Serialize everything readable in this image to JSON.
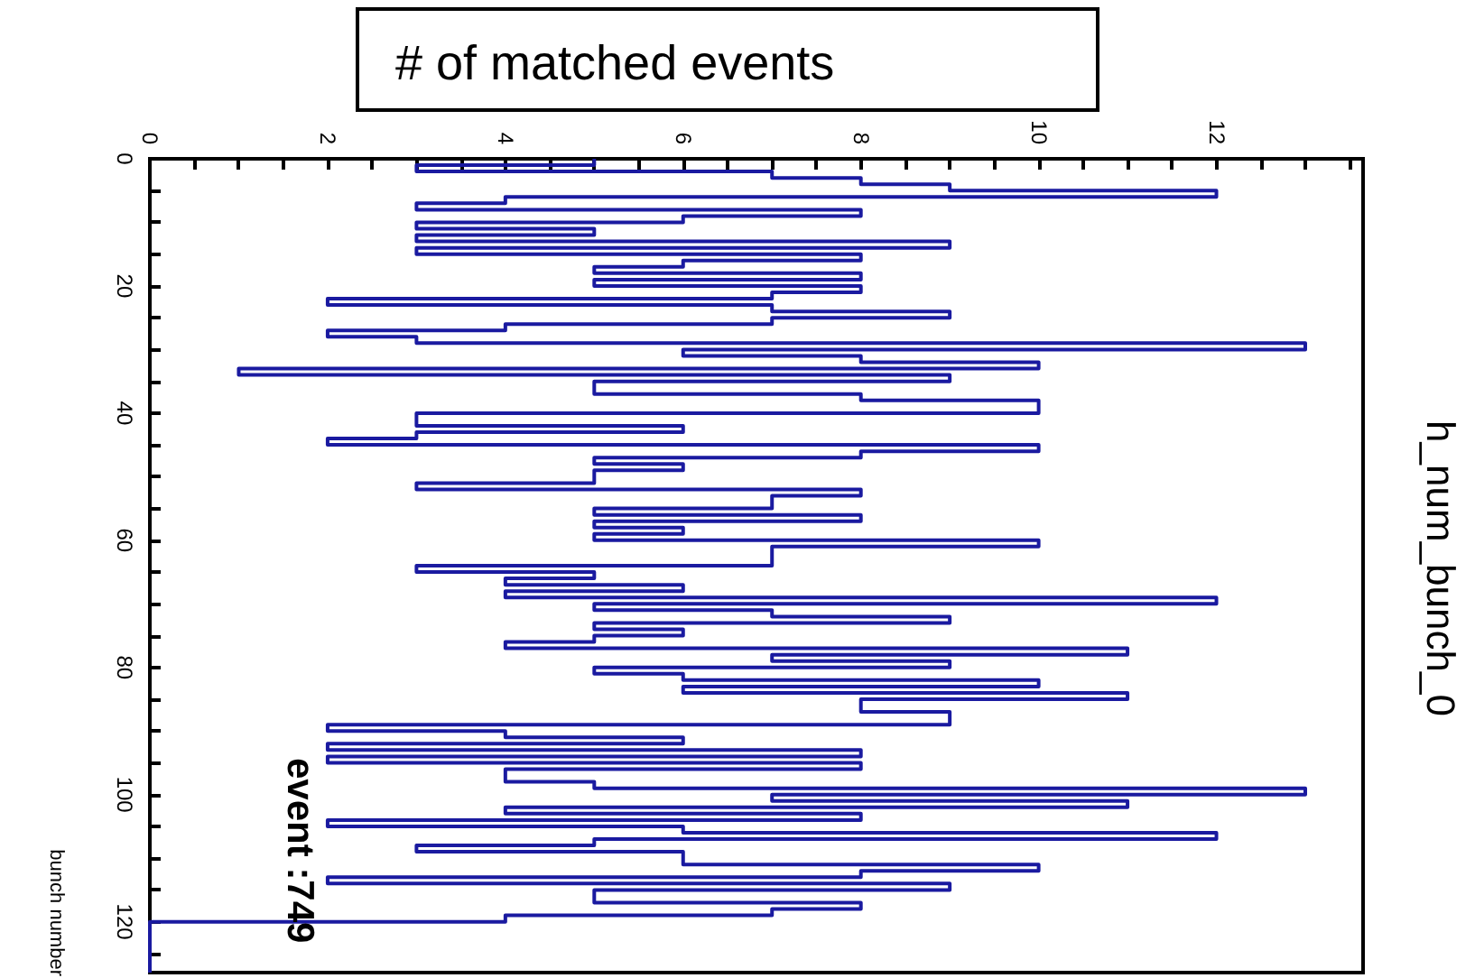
{
  "chart_data": {
    "type": "histogram",
    "orientation": "horizontal",
    "title": "h_num_bunch_0",
    "xlabel": "# of matched events",
    "ylabel": "bunch number",
    "annotations": [
      "event :749"
    ],
    "bins": [
      0,
      1,
      2,
      3,
      4,
      5,
      6,
      7,
      8,
      9,
      10,
      11,
      12,
      13,
      14,
      15,
      16,
      17,
      18,
      19,
      20,
      21,
      22,
      23,
      24,
      25,
      26,
      27,
      28,
      29,
      30,
      31,
      32,
      33,
      34,
      35,
      36,
      37,
      38,
      39,
      40,
      41,
      42,
      43,
      44,
      45,
      46,
      47,
      48,
      49,
      50,
      51,
      52,
      53,
      54,
      55,
      56,
      57,
      58,
      59,
      60,
      61,
      62,
      63,
      64,
      65,
      66,
      67,
      68,
      69,
      70,
      71,
      72,
      73,
      74,
      75,
      76,
      77,
      78,
      79,
      80,
      81,
      82,
      83,
      84,
      85,
      86,
      87,
      88,
      89,
      90,
      91,
      92,
      93,
      94,
      95,
      96,
      97,
      98,
      99,
      100,
      101,
      102,
      103,
      104,
      105,
      106,
      107,
      108,
      109,
      110,
      111,
      112,
      113,
      114,
      115,
      116,
      117,
      118,
      119,
      120,
      121,
      122,
      123,
      124,
      125,
      126,
      127,
      128
    ],
    "values": [
      5,
      3,
      7,
      8,
      9,
      12,
      4,
      3,
      8,
      6,
      3,
      5,
      3,
      9,
      3,
      8,
      6,
      5,
      8,
      5,
      8,
      7,
      2,
      7,
      9,
      7,
      4,
      2,
      3,
      13,
      6,
      8,
      10,
      1,
      9,
      5,
      5,
      8,
      10,
      10,
      3,
      3,
      6,
      3,
      2,
      10,
      8,
      5,
      6,
      5,
      5,
      3,
      8,
      7,
      7,
      5,
      8,
      5,
      6,
      5,
      10,
      7,
      7,
      7,
      3,
      5,
      4,
      6,
      4,
      12,
      5,
      7,
      9,
      5,
      6,
      5,
      4,
      11,
      7,
      9,
      5,
      6,
      10,
      6,
      11,
      8,
      8,
      9,
      9,
      2,
      4,
      6,
      2,
      8,
      2,
      8,
      4,
      4,
      5,
      13,
      7,
      11,
      4,
      8,
      2,
      6,
      12,
      5,
      3,
      6,
      6,
      10,
      8,
      2,
      9,
      5,
      5,
      8,
      7,
      4,
      0,
      0,
      0,
      0,
      0,
      0,
      0,
      0
    ],
    "color": "#1a1aa0",
    "xlim": [
      0,
      13.65
    ],
    "ylim": [
      128,
      0
    ],
    "yticks": [
      0,
      {
        "value": 5,
        "label": null
      },
      {
        "value": 10,
        "label": null
      },
      {
        "value": 15,
        "label": null
      },
      20,
      {
        "value": 25,
        "label": null
      },
      {
        "value": 30,
        "label": null
      },
      {
        "value": 35,
        "label": null
      },
      40,
      {
        "value": 45,
        "label": null
      },
      {
        "value": 50,
        "label": null
      },
      {
        "value": 55,
        "label": null
      },
      60,
      {
        "value": 65,
        "label": null
      },
      {
        "value": 70,
        "label": null
      },
      {
        "value": 75,
        "label": null
      },
      80,
      {
        "value": 85,
        "label": null
      },
      {
        "value": 90,
        "label": null
      },
      {
        "value": 95,
        "label": null
      },
      100,
      {
        "value": 105,
        "label": null
      },
      {
        "value": 110,
        "label": null
      },
      {
        "value": 115,
        "label": null
      },
      120,
      {
        "value": 125,
        "label": null
      }
    ],
    "xticks": [
      0,
      {
        "value": 0.5,
        "label": null
      },
      {
        "value": 1,
        "label": null
      },
      {
        "value": 1.5,
        "label": null
      },
      2,
      {
        "value": 2.5,
        "label": null
      },
      {
        "value": 3,
        "label": null
      },
      {
        "value": 3.5,
        "label": null
      },
      4,
      {
        "value": 4.5,
        "label": null
      },
      {
        "value": 5,
        "label": null
      },
      {
        "value": 5.5,
        "label": null
      },
      6,
      {
        "value": 6.5,
        "label": null
      },
      {
        "value": 7,
        "label": null
      },
      {
        "value": 7.5,
        "label": null
      },
      8,
      {
        "value": 8.5,
        "label": null
      },
      {
        "value": 9,
        "label": null
      },
      {
        "value": 9.5,
        "label": null
      },
      10,
      {
        "value": 10.5,
        "label": null
      },
      {
        "value": 11,
        "label": null
      },
      {
        "value": 11.5,
        "label": null
      },
      12,
      {
        "value": 12.5,
        "label": null
      },
      {
        "value": 13,
        "label": null
      },
      {
        "value": 13.5,
        "label": null
      }
    ]
  }
}
